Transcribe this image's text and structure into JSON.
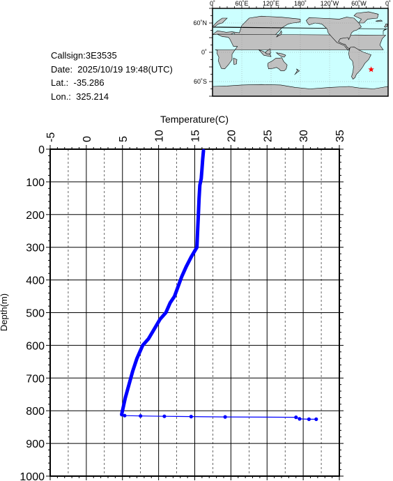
{
  "info": {
    "callsign": "Callsign:3E3535",
    "date": "Date:  2025/10/19 19:48(UTC)",
    "lat": "Lat.:  -35.286",
    "lon": "Lon.:  325.214"
  },
  "map": {
    "top_labels": [
      "0˚",
      "60˚E",
      "120˚E",
      "180˚",
      "120˚W",
      "60˚W",
      "0˚"
    ],
    "left_labels": [
      "60˚N",
      "0˚",
      "60˚S"
    ],
    "station": {
      "lat": -35.286,
      "lon": 325.214
    },
    "ocean_color": "#ccffff",
    "land_color": "#c0c0c0",
    "marker_color": "#ff0000"
  },
  "chart_data": {
    "type": "line",
    "xlabel": "Temperature(C)",
    "ylabel": "Depth(m)",
    "xlim": [
      -5,
      35
    ],
    "ylim": [
      0,
      1000
    ],
    "x_ticks": [
      "-5",
      "0",
      "5",
      "10",
      "15",
      "20",
      "25",
      "30",
      "35"
    ],
    "y_ticks": [
      "0",
      "100",
      "200",
      "300",
      "400",
      "500",
      "600",
      "700",
      "800",
      "900",
      "1000"
    ],
    "line_color": "#0000ff",
    "series": [
      {
        "points": [
          [
            16.2,
            5
          ],
          [
            16.1,
            30
          ],
          [
            16.0,
            60
          ],
          [
            15.9,
            90
          ],
          [
            15.7,
            110
          ],
          [
            15.6,
            150
          ],
          [
            15.5,
            200
          ],
          [
            15.4,
            250
          ],
          [
            15.3,
            300
          ],
          [
            14.5,
            330
          ],
          [
            13.8,
            360
          ],
          [
            13.2,
            390
          ],
          [
            12.7,
            420
          ],
          [
            12.2,
            450
          ],
          [
            11.6,
            470
          ],
          [
            11.0,
            500
          ],
          [
            10.2,
            520
          ],
          [
            9.4,
            550
          ],
          [
            8.6,
            580
          ],
          [
            7.8,
            600
          ],
          [
            7.0,
            640
          ],
          [
            6.4,
            680
          ],
          [
            5.9,
            720
          ],
          [
            5.4,
            760
          ],
          [
            5.1,
            790
          ],
          [
            4.9,
            810
          ]
        ]
      },
      {
        "markers": true,
        "points": [
          [
            4.9,
            812
          ],
          [
            5.3,
            815
          ],
          [
            7.5,
            816
          ],
          [
            10.8,
            817
          ],
          [
            14.5,
            818
          ],
          [
            19.2,
            819
          ],
          [
            29.0,
            820
          ],
          [
            29.5,
            825
          ],
          [
            30.8,
            826
          ],
          [
            31.8,
            826
          ]
        ]
      }
    ]
  }
}
